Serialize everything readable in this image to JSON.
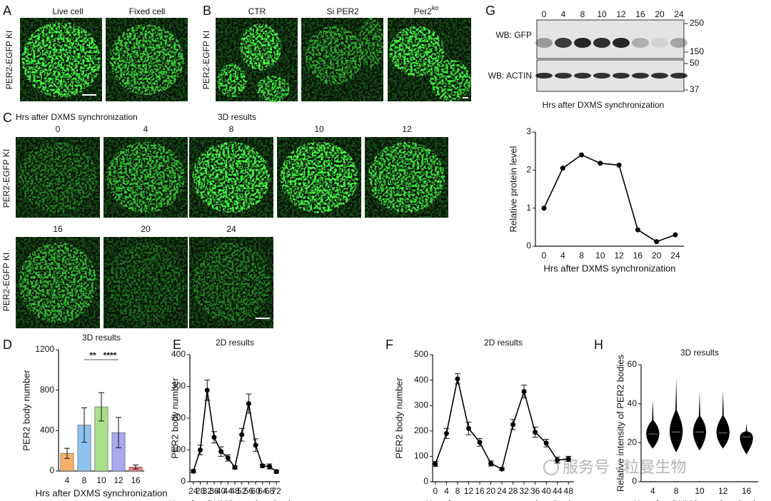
{
  "panel_labels": [
    "A",
    "B",
    "C",
    "D",
    "E",
    "F",
    "G",
    "H"
  ],
  "A": {
    "labels": [
      "Live cell",
      "Fixed cell"
    ],
    "ylabel": "PER2-EGFP KI"
  },
  "B": {
    "labels": [
      "CTR",
      "Si PER2"
    ],
    "ko_label": "Per2",
    "ko_sup": "ko",
    "ylabel": "PER2-EGFP KI"
  },
  "C": {
    "caption": "Hrs after DXMS synchronization",
    "subtitle": "3D results",
    "timepoints": [
      "0",
      "4",
      "8",
      "10",
      "12",
      "16",
      "20",
      "24"
    ],
    "ylabel": "PER2-EGFP KI"
  },
  "blot": {
    "lanes": [
      "0",
      "4",
      "8",
      "10",
      "12",
      "16",
      "20",
      "24"
    ],
    "rows": [
      "WB: GFP",
      "WB: ACTIN"
    ],
    "markers": [
      "250",
      "150",
      "50",
      "37"
    ],
    "caption": "Hrs after DXMS synchronization"
  },
  "watermark": "服务号 · 粒曼生物",
  "chart_data": [
    {
      "type": "bar",
      "title": "3D results",
      "categories": [
        "4",
        "8",
        "10",
        "12",
        "16"
      ],
      "values": [
        175,
        455,
        635,
        380,
        40
      ],
      "errors": [
        50,
        170,
        140,
        150,
        20
      ],
      "colors": [
        "#f5b06b",
        "#8fc3ef",
        "#a8e08a",
        "#a9a9f0",
        "#f08080"
      ],
      "ylim": [
        0,
        1200
      ],
      "yticks": [
        0,
        400,
        800,
        1200
      ],
      "ylabel": "PER2 body number",
      "xlabel": "Hrs after DXMS synchronization",
      "annotations": [
        "**",
        "****"
      ]
    },
    {
      "type": "line",
      "title": "2D results",
      "x": [
        24,
        28,
        32,
        36,
        40,
        44,
        48,
        52,
        56,
        60,
        64,
        68,
        72
      ],
      "values": [
        33,
        100,
        288,
        140,
        95,
        75,
        45,
        148,
        246,
        115,
        50,
        48,
        32
      ],
      "errors": [
        5,
        15,
        32,
        18,
        15,
        10,
        5,
        20,
        30,
        20,
        5,
        8,
        5
      ],
      "color": "#000000",
      "xlim": [
        22,
        74
      ],
      "xticks": [
        24,
        28,
        32,
        36,
        40,
        44,
        48,
        52,
        56,
        60,
        64,
        68,
        72
      ],
      "ylim": [
        0,
        400
      ],
      "yticks": [
        0,
        100,
        200,
        300,
        400
      ],
      "ylabel": "PER2 body number",
      "xlabel": "Hrs after DXMS synchronization"
    },
    {
      "type": "line",
      "title": "2D results",
      "x": [
        0,
        4,
        8,
        12,
        16,
        20,
        24,
        28,
        32,
        36,
        40,
        44,
        48
      ],
      "values": [
        70,
        190,
        405,
        210,
        155,
        72,
        50,
        225,
        355,
        195,
        152,
        85,
        90
      ],
      "errors": [
        10,
        20,
        20,
        25,
        15,
        10,
        5,
        20,
        25,
        20,
        15,
        12,
        10
      ],
      "color": "#000000",
      "xlim": [
        -1,
        50
      ],
      "xticks": [
        0,
        4,
        8,
        12,
        16,
        20,
        24,
        28,
        32,
        36,
        40,
        44,
        48
      ],
      "ylim": [
        0,
        500
      ],
      "yticks": [
        0,
        100,
        200,
        300,
        400,
        500
      ],
      "ylabel": "PER2 body number",
      "xlabel": "Hrs after temperature synchronization"
    },
    {
      "type": "line",
      "categories": [
        "0",
        "4",
        "8",
        "10",
        "12",
        "16",
        "20",
        "24"
      ],
      "values": [
        1,
        2.05,
        2.4,
        2.18,
        2.13,
        0.43,
        0.12,
        0.3
      ],
      "color": "#000000",
      "ylim": [
        0,
        3
      ],
      "yticks": [
        0,
        1,
        2,
        3
      ],
      "ylabel": "Relative protein level",
      "xlabel": "Hrs after DXMS synchronization"
    },
    {
      "type": "violin",
      "title": "3D results",
      "categories": [
        "4",
        "8",
        "10",
        "12",
        "16"
      ],
      "values": [
        24.5,
        25.5,
        25.5,
        25,
        23
      ],
      "min": [
        17,
        15,
        16,
        17,
        14
      ],
      "max": [
        42,
        53,
        46,
        47,
        30
      ],
      "color": "#000000",
      "ylim": [
        0,
        60
      ],
      "yticks": [
        0,
        20,
        40,
        60
      ],
      "ylabel": "Relative intensity of PER2 bodies",
      "xlabel": "Hrs after DXMS synchronization"
    }
  ]
}
